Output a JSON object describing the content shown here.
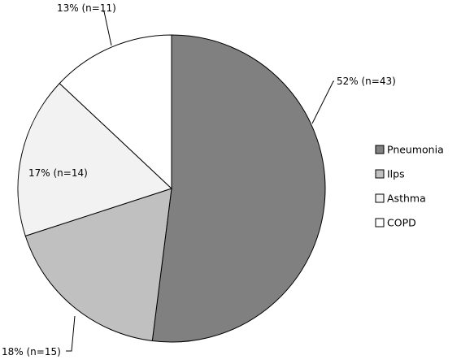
{
  "chart_data": {
    "type": "pie",
    "start_angle": "12 o'clock",
    "direction": "clockwise",
    "slices": [
      {
        "label": "Pneumonia",
        "percent": 52,
        "n": 43,
        "data_label": "52% (n=43)",
        "color": "#808080"
      },
      {
        "label": "Ilps",
        "percent": 18,
        "n": 15,
        "data_label": "18% (n=15)",
        "color": "#c0c0c0"
      },
      {
        "label": "Asthma",
        "percent": 17,
        "n": 14,
        "data_label": "17% (n=14)",
        "color": "#f2f2f2"
      },
      {
        "label": "COPD",
        "percent": 13,
        "n": 11,
        "data_label": "13% (n=11)",
        "color": "#ffffff"
      }
    ],
    "legend": {
      "placement": "right",
      "entries": [
        "Pneumonia",
        "Ilps",
        "Asthma",
        "COPD"
      ]
    }
  }
}
